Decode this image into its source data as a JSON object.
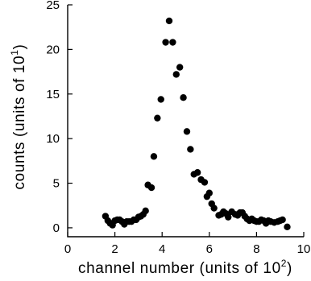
{
  "chart_data": {
    "type": "scatter",
    "title": "",
    "xlabel": {
      "prefix": "channel number (units of 10",
      "exponent": "2",
      "suffix": ")"
    },
    "ylabel": {
      "prefix": "counts (units of 10",
      "exponent": "1",
      "suffix": ")"
    },
    "xlim": [
      0,
      10
    ],
    "ylim": [
      -1,
      25
    ],
    "x_ticks": [
      0,
      2,
      4,
      6,
      8,
      10
    ],
    "x_tick_labels": [
      "0",
      "2",
      "4",
      "6",
      "8",
      "10"
    ],
    "y_ticks": [
      0,
      5,
      10,
      15,
      20,
      25
    ],
    "y_tick_labels": [
      "0",
      "5",
      "10",
      "15",
      "20",
      "25"
    ],
    "grid": false,
    "legend": "none",
    "marker_color": "#000000",
    "series": [
      {
        "points": [
          [
            1.6,
            1.3
          ],
          [
            1.7,
            0.8
          ],
          [
            1.8,
            0.5
          ],
          [
            1.9,
            0.3
          ],
          [
            2.0,
            0.8
          ],
          [
            2.1,
            0.9
          ],
          [
            2.2,
            0.9
          ],
          [
            2.3,
            0.7
          ],
          [
            2.4,
            0.4
          ],
          [
            2.5,
            0.7
          ],
          [
            2.6,
            0.7
          ],
          [
            2.7,
            0.7
          ],
          [
            2.8,
            0.9
          ],
          [
            2.9,
            0.9
          ],
          [
            3.0,
            1.2
          ],
          [
            3.1,
            1.3
          ],
          [
            3.2,
            1.5
          ],
          [
            3.3,
            1.9
          ],
          [
            3.4,
            4.8
          ],
          [
            3.55,
            4.5
          ],
          [
            3.65,
            8.0
          ],
          [
            3.8,
            12.3
          ],
          [
            3.95,
            14.4
          ],
          [
            4.15,
            20.8
          ],
          [
            4.3,
            23.2
          ],
          [
            4.45,
            20.8
          ],
          [
            4.6,
            17.2
          ],
          [
            4.75,
            18.0
          ],
          [
            4.9,
            14.6
          ],
          [
            5.05,
            10.8
          ],
          [
            5.2,
            8.8
          ],
          [
            5.35,
            6.0
          ],
          [
            5.5,
            6.2
          ],
          [
            5.65,
            5.4
          ],
          [
            5.8,
            5.1
          ],
          [
            5.9,
            3.5
          ],
          [
            6.0,
            3.9
          ],
          [
            6.1,
            2.7
          ],
          [
            6.2,
            2.2
          ],
          [
            6.4,
            1.4
          ],
          [
            6.5,
            1.5
          ],
          [
            6.6,
            1.8
          ],
          [
            6.7,
            1.6
          ],
          [
            6.8,
            1.2
          ],
          [
            6.95,
            1.8
          ],
          [
            7.1,
            1.5
          ],
          [
            7.2,
            1.4
          ],
          [
            7.3,
            1.7
          ],
          [
            7.4,
            1.7
          ],
          [
            7.5,
            1.3
          ],
          [
            7.6,
            1.0
          ],
          [
            7.7,
            0.8
          ],
          [
            7.8,
            1.0
          ],
          [
            7.9,
            0.8
          ],
          [
            8.0,
            0.7
          ],
          [
            8.1,
            0.7
          ],
          [
            8.2,
            0.9
          ],
          [
            8.3,
            0.8
          ],
          [
            8.4,
            0.5
          ],
          [
            8.5,
            0.8
          ],
          [
            8.6,
            0.7
          ],
          [
            8.75,
            0.6
          ],
          [
            8.9,
            0.7
          ],
          [
            9.0,
            0.8
          ],
          [
            9.1,
            0.9
          ],
          [
            9.3,
            0.1
          ]
        ]
      }
    ]
  }
}
